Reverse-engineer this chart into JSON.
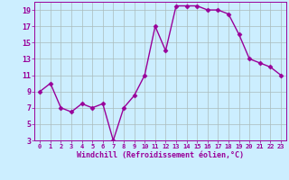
{
  "x": [
    0,
    1,
    2,
    3,
    4,
    5,
    6,
    7,
    8,
    9,
    10,
    11,
    12,
    13,
    14,
    15,
    16,
    17,
    18,
    19,
    20,
    21,
    22,
    23
  ],
  "y": [
    9,
    10,
    7,
    6.5,
    7.5,
    7,
    7.5,
    3,
    7,
    8.5,
    11,
    17,
    14,
    19.5,
    19.5,
    19.5,
    19,
    19,
    18.5,
    16,
    13,
    12.5,
    12,
    11
  ],
  "line_color": "#990099",
  "marker": "D",
  "marker_size": 2.5,
  "bg_color": "#cceeff",
  "grid_color": "#aabbbb",
  "xlabel": "Windchill (Refroidissement éolien,°C)",
  "xlabel_color": "#990099",
  "tick_color": "#990099",
  "ylim": [
    3,
    20
  ],
  "xlim": [
    -0.5,
    23.5
  ],
  "yticks": [
    3,
    5,
    7,
    9,
    11,
    13,
    15,
    17,
    19
  ],
  "xticks": [
    0,
    1,
    2,
    3,
    4,
    5,
    6,
    7,
    8,
    9,
    10,
    11,
    12,
    13,
    14,
    15,
    16,
    17,
    18,
    19,
    20,
    21,
    22,
    23
  ],
  "line_width": 1.0
}
